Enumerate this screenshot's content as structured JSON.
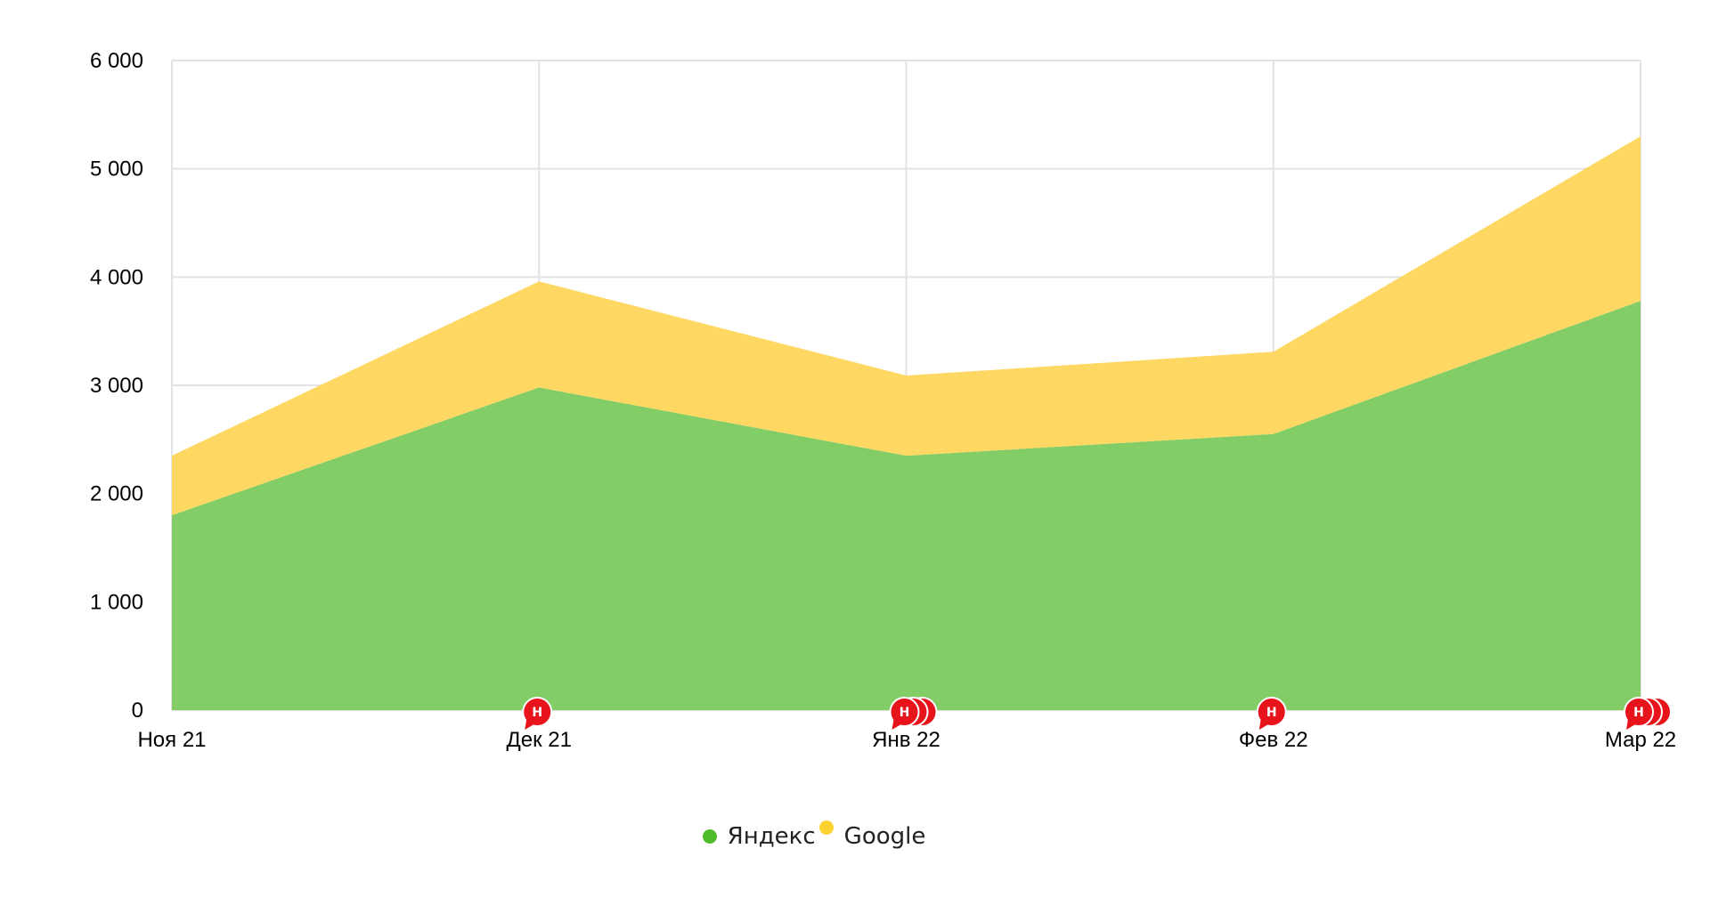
{
  "chart_data": {
    "type": "area",
    "stacked": true,
    "categories": [
      "Ноя 21",
      "Дек 21",
      "Янв 22",
      "Фев 22",
      "Мар 22"
    ],
    "series": [
      {
        "name": "Яндекс",
        "values": [
          1800,
          2980,
          2350,
          2550,
          3780
        ],
        "color": "#7fcc62"
      },
      {
        "name": "Google",
        "values": [
          550,
          980,
          740,
          760,
          1520
        ],
        "color": "#fed75f"
      }
    ],
    "ylim": [
      0,
      6000
    ],
    "yticks": [
      {
        "value": 0,
        "label": "0"
      },
      {
        "value": 1000,
        "label": "1 000"
      },
      {
        "value": 2000,
        "label": "2 000"
      },
      {
        "value": 3000,
        "label": "3 000"
      },
      {
        "value": 4000,
        "label": "4 000"
      },
      {
        "value": 5000,
        "label": "5 000"
      },
      {
        "value": 6000,
        "label": "6 000"
      }
    ],
    "grid": true,
    "legend_position": "bottom-center",
    "annotations": [
      {
        "category": "Дек 21",
        "label": "Н",
        "stack": 1
      },
      {
        "category": "Янв 22",
        "label": "Н",
        "stack": 3
      },
      {
        "category": "Фев 22",
        "label": "Н",
        "stack": 1
      },
      {
        "category": "Мар 22",
        "label": "Н",
        "stack": 3
      }
    ],
    "annotation_color": "#e8141c",
    "legend_dot_colors": {
      "Яндекс": "#4fbb2c",
      "Google": "#fdd22f"
    }
  }
}
